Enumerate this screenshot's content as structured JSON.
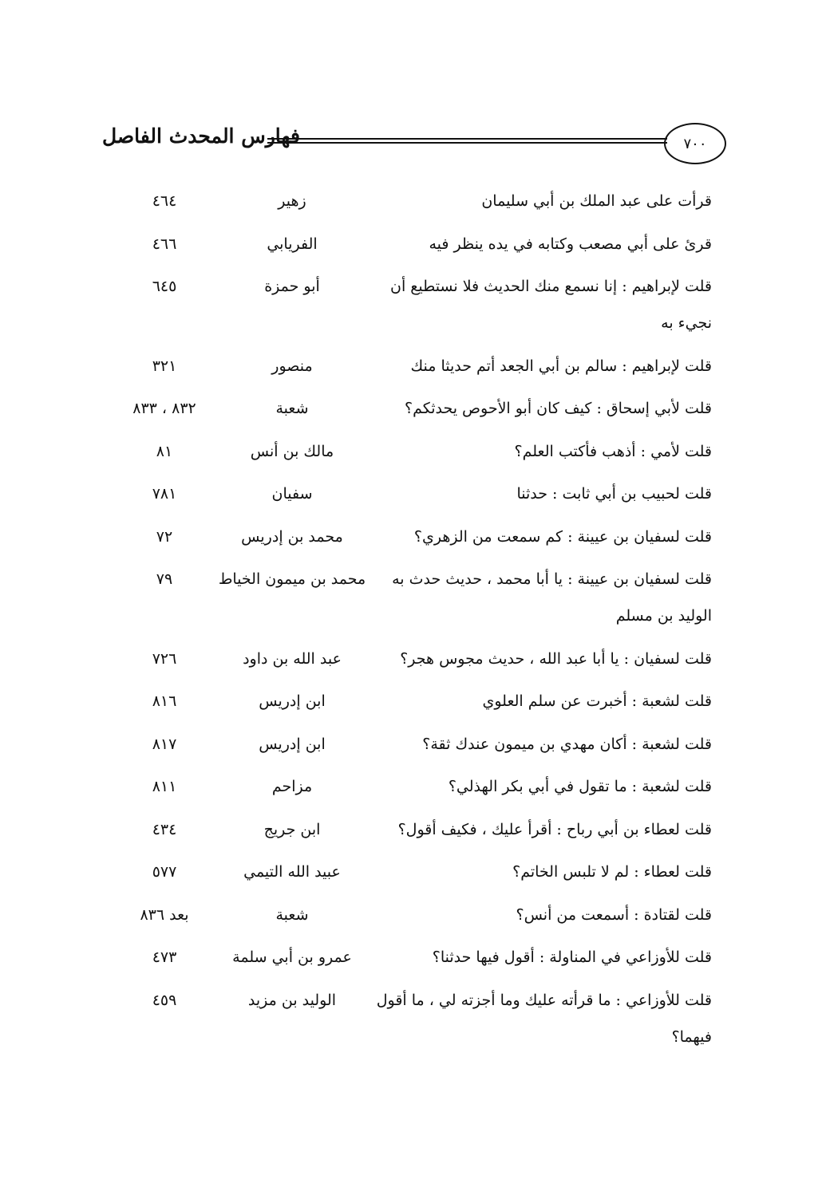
{
  "header": {
    "page_number": "٧٠٠",
    "title": "فهارس المحدث الفاصل"
  },
  "rows": [
    {
      "text": "قرأت على عبد الملك بن أبي سليمان",
      "name": "زهير",
      "page": "٤٦٤"
    },
    {
      "text": "قرئ على أبي مصعب وكتابه في يده ينظر فيه",
      "name": "الفريابي",
      "page": "٤٦٦"
    },
    {
      "text": "قلت لإبراهيم : إنا نسمع منك الحديث فلا نستطيع أن نجيء به",
      "name": "أبو حمزة",
      "page": "٦٤٥"
    },
    {
      "text": "قلت لإبراهيم : سالم بن أبي الجعد أتم حديثا منك",
      "name": "منصور",
      "page": "٣٢١"
    },
    {
      "text": "قلت لأبي إسحاق : كيف كان أبو الأحوص يحدثكم؟",
      "name": "شعبة",
      "page": "٨٣٢ ، ٨٣٣"
    },
    {
      "text": "قلت لأمي : أذهب فأكتب العلم؟",
      "name": "مالك بن أنس",
      "page": "٨١"
    },
    {
      "text": "قلت لحبيب بن أبي ثابت : حدثنا",
      "name": "سفيان",
      "page": "٧٨١"
    },
    {
      "text": "قلت لسفيان بن عيينة : كم سمعت من الزهري؟",
      "name": "محمد بن إدريس",
      "page": "٧٢"
    },
    {
      "text": "قلت لسفيان بن عيينة : يا أبا محمد ، حديث حدث به الوليد بن مسلم",
      "name": "محمد بن ميمون الخياط",
      "page": "٧٩"
    },
    {
      "text": "قلت لسفيان : يا أبا عبد الله ، حديث مجوس هجر؟",
      "name": "عبد الله بن داود",
      "page": "٧٢٦"
    },
    {
      "text": "قلت لشعبة : أخبرت عن سلم العلوي",
      "name": "ابن إدريس",
      "page": "٨١٦"
    },
    {
      "text": "قلت لشعبة : أكان مهدي بن ميمون عندك ثقة؟",
      "name": "ابن إدريس",
      "page": "٨١٧"
    },
    {
      "text": "قلت لشعبة : ما تقول في أبي بكر الهذلي؟",
      "name": "مزاحم",
      "page": "٨١١"
    },
    {
      "text": "قلت لعطاء بن أبي رباح : أقرأ عليك ، فكيف أقول؟",
      "name": "ابن جريج",
      "page": "٤٣٤"
    },
    {
      "text": "قلت لعطاء : لم لا تلبس الخاتم؟",
      "name": "عبيد الله التيمي",
      "page": "٥٧٧"
    },
    {
      "text": "قلت لقتادة : أسمعت من أنس؟",
      "name": "شعبة",
      "page": "بعد ٨٣٦"
    },
    {
      "text": "قلت للأوزاعي في المناولة : أقول فيها حدثنا؟",
      "name": "عمرو بن أبي سلمة",
      "page": "٤٧٣"
    },
    {
      "text": "قلت للأوزاعي : ما قرأته عليك وما أجزته لي ، ما أقول فيهما؟",
      "name": "الوليد بن مزيد",
      "page": "٤٥٩"
    }
  ]
}
